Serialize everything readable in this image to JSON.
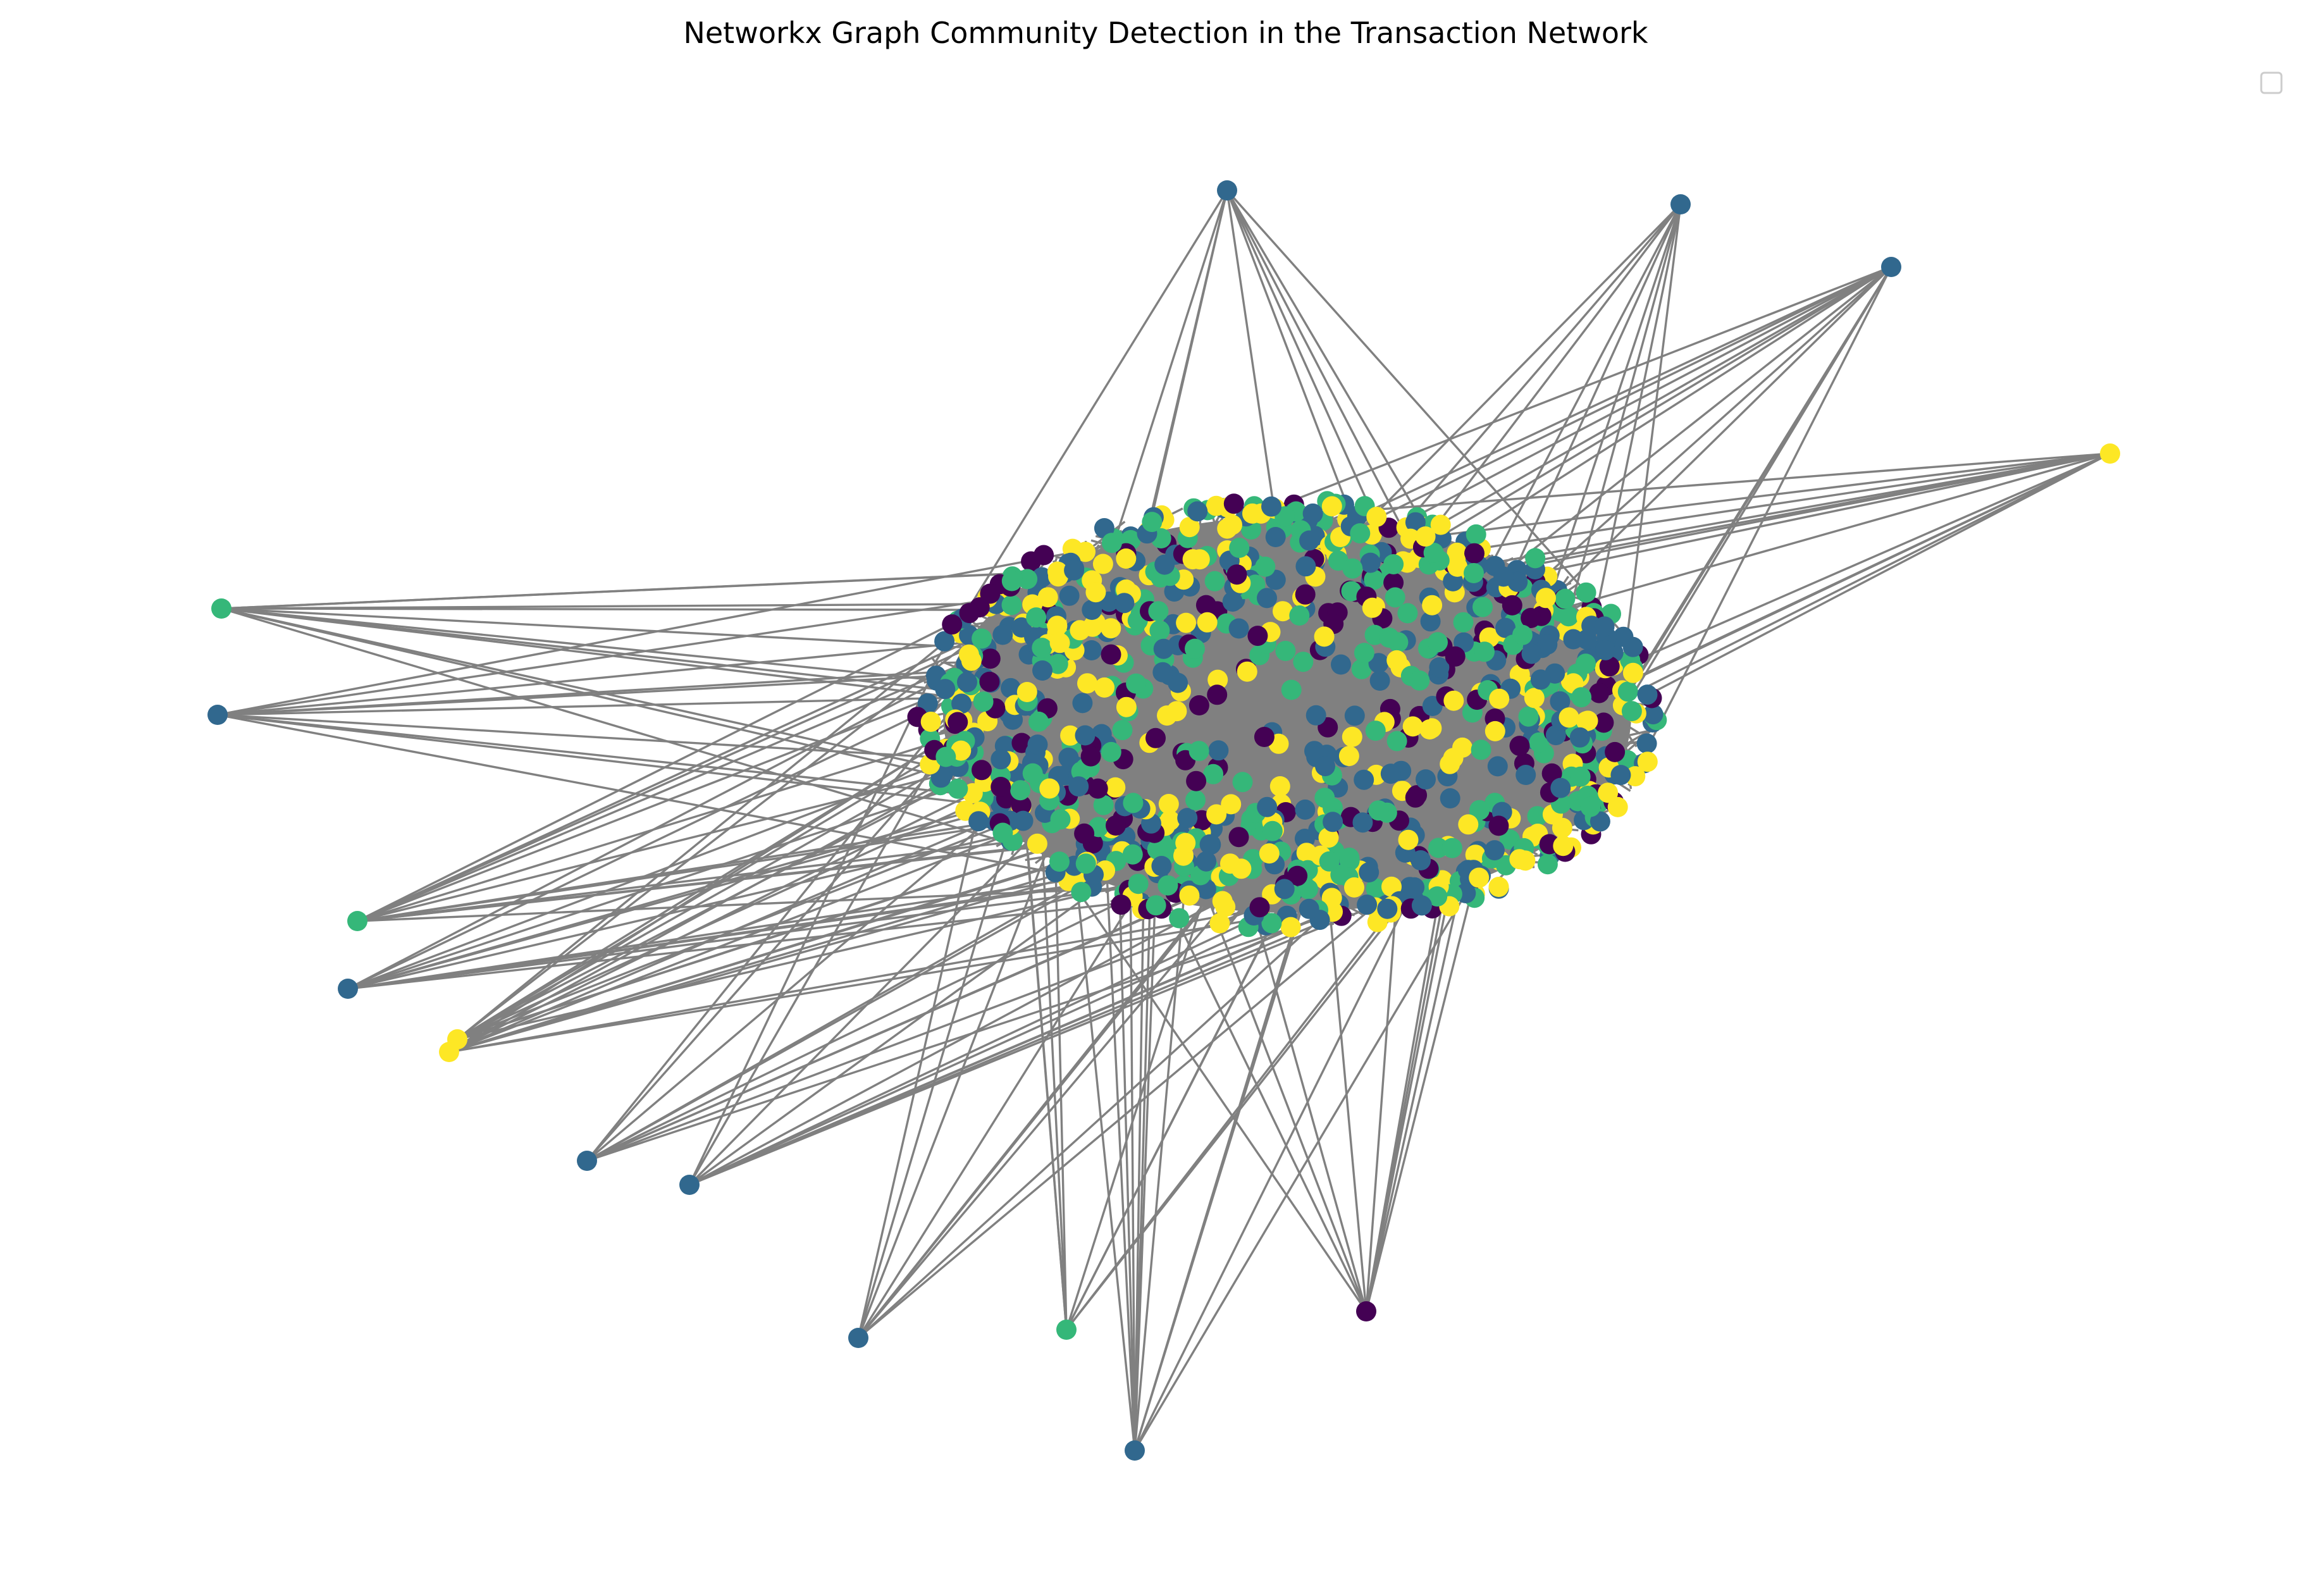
{
  "chart_data": {
    "type": "network",
    "title": "Networkx Graph Community Detection in the Transaction Network",
    "xlabel": "",
    "ylabel": "",
    "axes_visible": false,
    "grid": false,
    "legend": {
      "placement": "top-right",
      "entries": []
    },
    "edge_color": "#808080",
    "community_colors": {
      "0": "#440154",
      "1": "#31688e",
      "2": "#35b779",
      "3": "#fde725"
    },
    "approx_node_count": 1000,
    "hub_nodes": [
      {
        "id": "h1",
        "community": 1
      },
      {
        "id": "h2",
        "community": 1
      },
      {
        "id": "h3",
        "community": 1
      },
      {
        "id": "h4",
        "community": 3
      },
      {
        "id": "h5",
        "community": 2
      },
      {
        "id": "h6",
        "community": 1
      },
      {
        "id": "h7",
        "community": 2
      },
      {
        "id": "h8",
        "community": 1
      },
      {
        "id": "h9",
        "community": 3
      },
      {
        "id": "h10",
        "community": 3
      },
      {
        "id": "h11",
        "community": 1
      },
      {
        "id": "h12",
        "community": 1
      },
      {
        "id": "h13",
        "community": 1
      },
      {
        "id": "h14",
        "community": 2
      },
      {
        "id": "h15",
        "community": 1
      },
      {
        "id": "h16",
        "community": 0
      }
    ]
  }
}
